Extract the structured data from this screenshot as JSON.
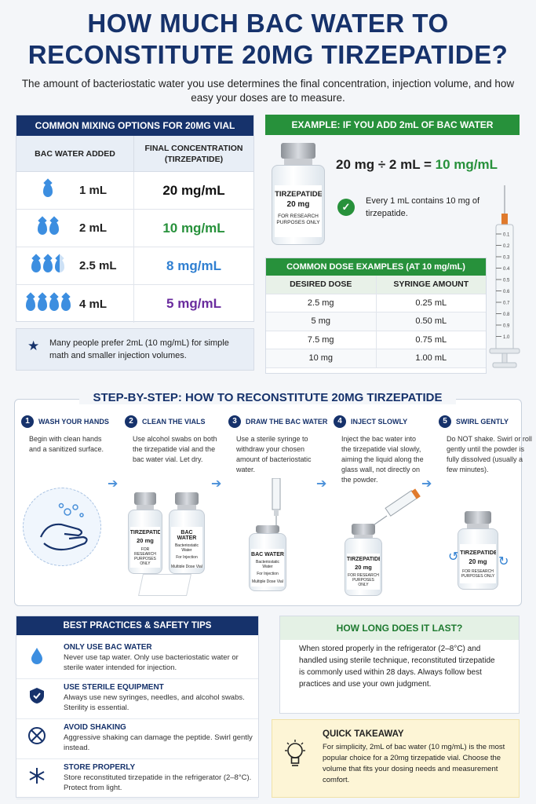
{
  "title": {
    "line1": "HOW MUCH BAC WATER TO",
    "line2": "RECONSTITUTE 20MG TIRZEPATIDE?"
  },
  "subtitle": "The amount of bacteriostatic water you use determines the final concentration, injection volume, and how easy your doses are to measure.",
  "mixing": {
    "heading": "COMMON MIXING OPTIONS FOR 20MG VIAL",
    "col1": "BAC WATER ADDED",
    "col2": "FINAL CONCENTRATION (TIRZEPATIDE)",
    "rows": [
      {
        "amount": "1 mL",
        "concentration": "20 mg/mL",
        "color": "#111111",
        "drops": 1
      },
      {
        "amount": "2 mL",
        "concentration": "10 mg/mL",
        "color": "#27913b",
        "drops": 2
      },
      {
        "amount": "2.5 mL",
        "concentration": "8 mg/mL",
        "color": "#2f7fd1",
        "drops": 2.5
      },
      {
        "amount": "4 mL",
        "concentration": "5 mg/mL",
        "color": "#6a2c9e",
        "drops": 4
      }
    ],
    "note": "Many people prefer 2mL (10 mg/mL) for simple math and smaller injection volumes."
  },
  "example": {
    "heading": "EXAMPLE: IF YOU ADD 2mL OF BAC WATER",
    "vial_name": "TIRZEPATIDE",
    "vial_dose": "20 mg",
    "vial_note": "FOR RESEARCH PURPOSES ONLY",
    "equation_lhs": "20 mg ÷ 2 mL =",
    "equation_rhs": "10 mg/mL",
    "check_text": "Every 1 mL contains 10 mg of tirzepatide."
  },
  "dose_table": {
    "heading": "COMMON DOSE EXAMPLES (AT 10 mg/mL)",
    "col1": "DESIRED DOSE",
    "col2": "SYRINGE AMOUNT",
    "rows": [
      {
        "dose": "2.5 mg",
        "amount": "0.25 mL"
      },
      {
        "dose": "5 mg",
        "amount": "0.50 mL"
      },
      {
        "dose": "7.5 mg",
        "amount": "0.75 mL"
      },
      {
        "dose": "10 mg",
        "amount": "1.00 mL"
      }
    ]
  },
  "syringe_ticks": [
    "0.1",
    "0.2",
    "0.3",
    "0.4",
    "0.5",
    "0.6",
    "0.7",
    "0.8",
    "0.9",
    "1.0"
  ],
  "steps": {
    "heading": "STEP-BY-STEP: HOW TO RECONSTITUTE 20MG TIRZEPATIDE",
    "items": [
      {
        "num": "1",
        "title": "WASH YOUR HANDS",
        "text": "Begin with clean hands and a sanitized surface."
      },
      {
        "num": "2",
        "title": "CLEAN THE VIALS",
        "text": "Use alcohol swabs on both the tirzepatide vial and the bac water vial.  Let dry."
      },
      {
        "num": "3",
        "title": "DRAW THE BAC WATER",
        "text": "Use a sterile syringe to withdraw your chosen amount of bacteriostatic water."
      },
      {
        "num": "4",
        "title": "INJECT SLOWLY",
        "text": "Inject the bac water into the tirzepatide vial slowly, aiming the liquid along the glass wall, not directly on the powder."
      },
      {
        "num": "5",
        "title": "SWIRL GENTLY",
        "text": "Do NOT shake. Swirl or roll gently until the powder is fully dissolved (usually a few minutes)."
      }
    ],
    "bac_vial_name": "BAC WATER",
    "bac_vial_line1": "Bacteriostatic Water",
    "bac_vial_line2": "For Injection",
    "bac_vial_line3": "Multiple Dose Vial"
  },
  "best_practices": {
    "heading": "BEST PRACTICES & SAFETY TIPS",
    "items": [
      {
        "icon": "water-drop-icon",
        "title": "ONLY USE BAC WATER",
        "text": "Never use tap water. Only use bacteriostatic water or sterile water intended for injection."
      },
      {
        "icon": "shield-icon",
        "title": "USE STERILE EQUIPMENT",
        "text": "Always use new syringes, needles, and alcohol swabs. Sterility is essential."
      },
      {
        "icon": "no-shake-icon",
        "title": "AVOID SHAKING",
        "text": "Aggressive shaking can damage the peptide. Swirl gently instead."
      },
      {
        "icon": "snowflake-icon",
        "title": "STORE PROPERLY",
        "text": "Store reconstituted tirzepatide in the refrigerator (2–8°C). Protect from light."
      }
    ]
  },
  "how_long": {
    "heading": "HOW LONG DOES IT LAST?",
    "text": "When stored properly in the refrigerator (2–8°C) and handled using sterile technique, reconstituted tirzepatide is commonly used within 28 days. Always follow best practices and use your own judgment."
  },
  "quick_takeaway": {
    "heading": "QUICK TAKEAWAY",
    "text": "For simplicity, 2mL of bac water (10 mg/mL) is the most popular choice for a 20mg tirzepatide vial. Choose the volume that fits your dosing needs and measurement comfort."
  }
}
